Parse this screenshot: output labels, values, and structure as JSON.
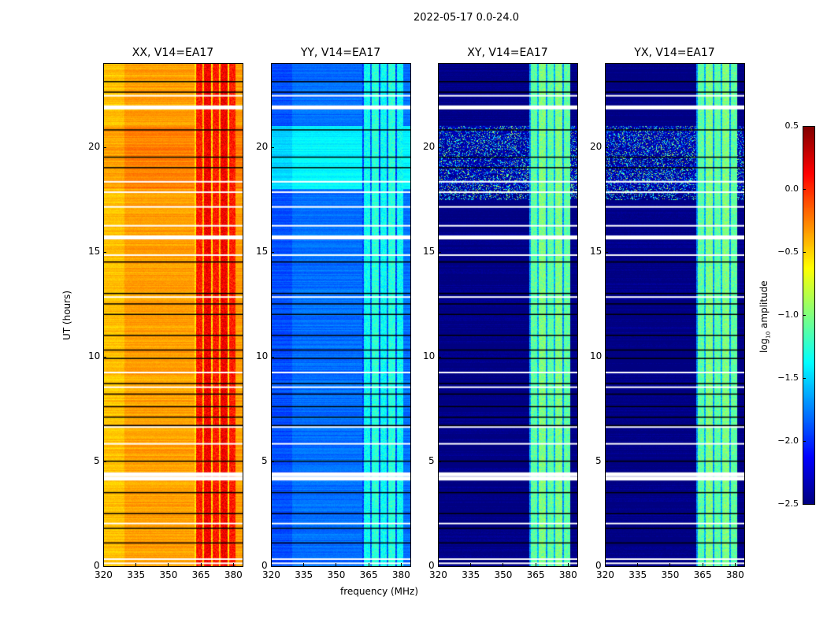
{
  "suptitle": "2022-05-17 0.0-24.0",
  "chart_data": {
    "type": "heatmap",
    "title": "2022-05-17 0.0-24.0",
    "xlabel": "frequency (MHz)",
    "ylabel": "UT (hours)",
    "xlim": [
      320,
      384.4
    ],
    "ylim": [
      0,
      24
    ],
    "x_ticks": [
      "320",
      "335",
      "350",
      "365",
      "380"
    ],
    "x_tick_values": [
      320,
      335,
      350,
      365,
      380
    ],
    "y_ticks": [
      "0",
      "5",
      "10",
      "15",
      "20"
    ],
    "y_tick_values": [
      0,
      5,
      10,
      15,
      20
    ],
    "colormap": "jet",
    "colorbar": {
      "label_main": "log",
      "label_sub": "10",
      "label_tail": " amplitude",
      "range": [
        -2.5,
        0.5
      ],
      "ticks": [
        "0.5",
        "0.0",
        "−0.5",
        "−1.0",
        "−1.5",
        "−2.0",
        "−2.5"
      ],
      "tick_values": [
        0.5,
        0.0,
        -0.5,
        -1.0,
        -1.5,
        -2.0,
        -2.5
      ]
    },
    "panels": [
      {
        "title": "XX, V14=EA17",
        "base_level": -0.35,
        "rfi_band_level": 0.05,
        "rfi_band_mhz": [
          362,
          381
        ]
      },
      {
        "title": "YY, V14=EA17",
        "base_level": -1.8,
        "rfi_band_level": -1.35,
        "rfi_band_mhz": [
          362,
          381
        ]
      },
      {
        "title": "XY, V14=EA17",
        "base_level": -2.5,
        "rfi_band_level": -1.1,
        "rfi_band_mhz": [
          362,
          381
        ]
      },
      {
        "title": "YX, V14=EA17",
        "base_level": -2.5,
        "rfi_band_level": -1.1,
        "rfi_band_mhz": [
          362,
          381
        ]
      }
    ],
    "flagged_hours_white": [
      0.1,
      0.3,
      2.0,
      4.2,
      4.4,
      5.8,
      6.6,
      8.5,
      9.2,
      12.8,
      14.8,
      15.7,
      16.2,
      17.1,
      17.8,
      18.3,
      21.9,
      22.4
    ],
    "flagged_hours_black": [
      1.1,
      1.8,
      2.5,
      3.5,
      5.0,
      6.7,
      7.1,
      7.6,
      8.2,
      8.7,
      9.9,
      10.3,
      11.0,
      12.0,
      12.5,
      13.0,
      14.5,
      19.0,
      19.5,
      20.8,
      22.6,
      23.1
    ]
  }
}
